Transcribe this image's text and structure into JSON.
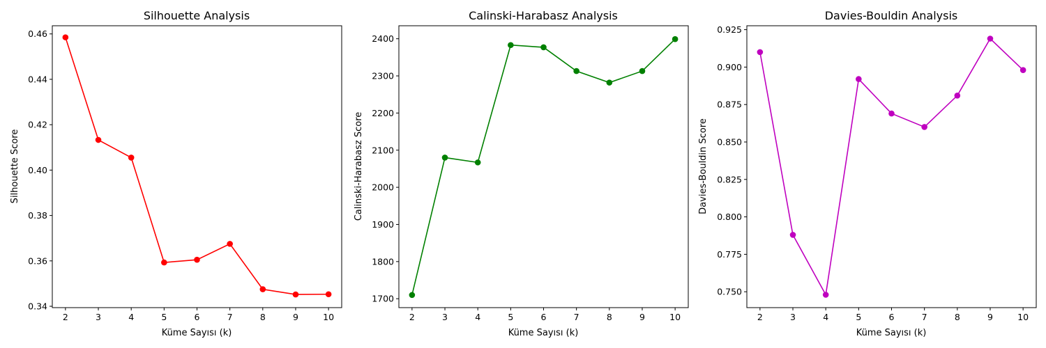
{
  "chart_data": [
    {
      "type": "line",
      "title": "Silhouette Analysis",
      "xlabel": "Küme Sayısı (k)",
      "ylabel": "Silhouette Score",
      "x": [
        2,
        3,
        4,
        5,
        6,
        7,
        8,
        9,
        10
      ],
      "series": [
        {
          "color": "#ff0000",
          "marker": "circle",
          "values": [
            0.4585,
            0.4133,
            0.4055,
            0.3593,
            0.3605,
            0.3675,
            0.3475,
            0.3452,
            0.3453
          ]
        }
      ],
      "xlim": [
        1.6,
        10.4
      ],
      "ylim": [
        0.3394,
        0.4636
      ],
      "yticks": [
        0.34,
        0.36,
        0.38,
        0.4,
        0.42,
        0.44,
        0.46
      ],
      "ytick_labels": [
        "0.34",
        "0.36",
        "0.38",
        "0.40",
        "0.42",
        "0.44",
        "0.46"
      ],
      "xticks": [
        2,
        3,
        4,
        5,
        6,
        7,
        8,
        9,
        10
      ],
      "xtick_labels": [
        "2",
        "3",
        "4",
        "5",
        "6",
        "7",
        "8",
        "9",
        "10"
      ],
      "grid": false
    },
    {
      "type": "line",
      "title": "Calinski-Harabasz Analysis",
      "xlabel": "Küme Sayısı (k)",
      "ylabel": "Calinski-Harabasz Score",
      "x": [
        2,
        3,
        4,
        5,
        6,
        7,
        8,
        9,
        10
      ],
      "series": [
        {
          "color": "#008000",
          "marker": "circle",
          "values": [
            1710,
            2080,
            2067,
            2383,
            2377,
            2313,
            2282,
            2313,
            2399
          ]
        }
      ],
      "xlim": [
        1.6,
        10.4
      ],
      "ylim": [
        1676,
        2435
      ],
      "yticks": [
        1700,
        1800,
        1900,
        2000,
        2100,
        2200,
        2300,
        2400
      ],
      "ytick_labels": [
        "1700",
        "1800",
        "1900",
        "2000",
        "2100",
        "2200",
        "2300",
        "2400"
      ],
      "xticks": [
        2,
        3,
        4,
        5,
        6,
        7,
        8,
        9,
        10
      ],
      "xtick_labels": [
        "2",
        "3",
        "4",
        "5",
        "6",
        "7",
        "8",
        "9",
        "10"
      ],
      "grid": false
    },
    {
      "type": "line",
      "title": "Davies-Bouldin Analysis",
      "xlabel": "Küme Sayısı (k)",
      "ylabel": "Davies-Bouldin Score",
      "x": [
        2,
        3,
        4,
        5,
        6,
        7,
        8,
        9,
        10
      ],
      "series": [
        {
          "color": "#bf00bf",
          "marker": "circle",
          "values": [
            0.91,
            0.788,
            0.748,
            0.892,
            0.869,
            0.86,
            0.881,
            0.919,
            0.898
          ]
        }
      ],
      "xlim": [
        1.6,
        10.4
      ],
      "ylim": [
        0.7394,
        0.9276
      ],
      "yticks": [
        0.75,
        0.775,
        0.8,
        0.825,
        0.85,
        0.875,
        0.9,
        0.925
      ],
      "ytick_labels": [
        "0.750",
        "0.775",
        "0.800",
        "0.825",
        "0.850",
        "0.875",
        "0.900",
        "0.925"
      ],
      "xticks": [
        2,
        3,
        4,
        5,
        6,
        7,
        8,
        9,
        10
      ],
      "xtick_labels": [
        "2",
        "3",
        "4",
        "5",
        "6",
        "7",
        "8",
        "9",
        "10"
      ],
      "grid": false
    }
  ]
}
